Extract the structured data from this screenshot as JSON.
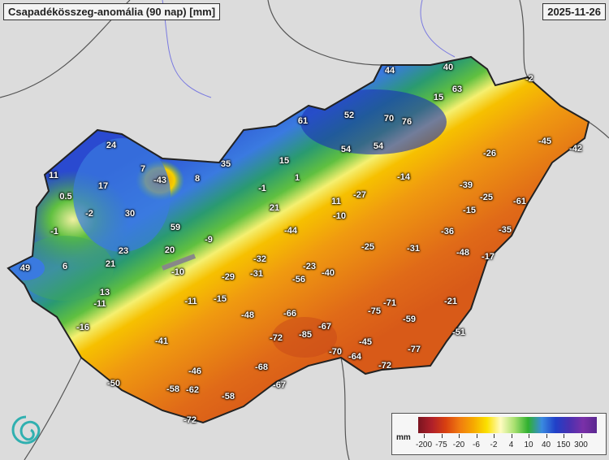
{
  "header": {
    "title": "Csapadékösszeg-anomália (90 nap) [mm]",
    "date": "2025-11-26"
  },
  "legend": {
    "unit": "mm",
    "ticks": [
      "-200",
      "-75",
      "-20",
      "-6",
      "-2",
      "4",
      "10",
      "40",
      "150",
      "300"
    ],
    "colors": [
      "#7a1420",
      "#d84010",
      "#f6a800",
      "#fbe000",
      "#fffcc0",
      "#30b030",
      "#3a8ae0",
      "#2040c8",
      "#7a30a8"
    ]
  },
  "map": {
    "region": "Hungary",
    "values": [
      "44",
      "40",
      "63",
      "15",
      "-2",
      "61",
      "52",
      "70",
      "76",
      "54",
      "54",
      "24",
      "-26",
      "-45",
      "-42",
      "11",
      "7",
      "-43",
      "8",
      "35",
      "15",
      "1",
      "-14",
      "17",
      "-39",
      "0.5",
      "-1",
      "11",
      "-27",
      "-25",
      "-61",
      "-2",
      "30",
      "21",
      "-10",
      "-15",
      "-1",
      "59",
      "-9",
      "-44",
      "-36",
      "-35",
      "49",
      "6",
      "23",
      "20",
      "-25",
      "-31",
      "-48",
      "-17",
      "21",
      "-32",
      "-23",
      "-40",
      "-10",
      "-29",
      "-31",
      "-56",
      "13",
      "-11",
      "-11",
      "-15",
      "-71",
      "-21",
      "-48",
      "-66",
      "-75",
      "-59",
      "-16",
      "-67",
      "-51",
      "-41",
      "-72",
      "-85",
      "-45",
      "-77",
      "-70",
      "-64",
      "-72",
      "-46",
      "-68",
      "-50",
      "-67",
      "-58",
      "-62",
      "-58",
      "-72"
    ]
  }
}
